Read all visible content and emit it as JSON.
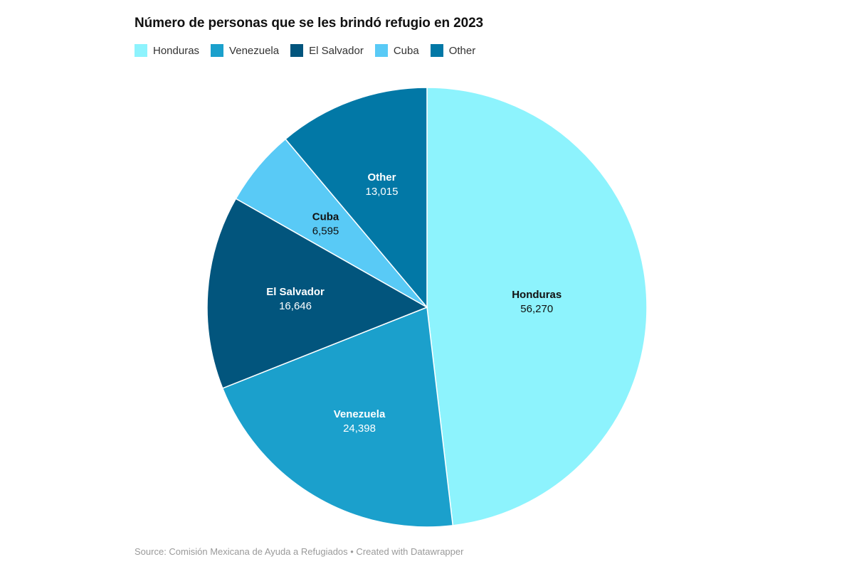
{
  "chart_data": {
    "type": "pie",
    "title": "Número de personas que se les brindó refugio en 2023",
    "categories": [
      "Honduras",
      "Venezuela",
      "El Salvador",
      "Cuba",
      "Other"
    ],
    "values": [
      56270,
      24398,
      16646,
      6595,
      13015
    ],
    "value_labels": [
      "56,270",
      "24,398",
      "16,646",
      "6,595",
      "13,015"
    ],
    "colors": [
      "#8df3fd",
      "#1ba0cc",
      "#02557d",
      "#59caf6",
      "#0278a6"
    ],
    "label_colors": [
      "#111111",
      "#ffffff",
      "#ffffff",
      "#111111",
      "#ffffff"
    ],
    "legend_placement": "top-left",
    "start_angle_deg": 0,
    "direction": "clockwise"
  },
  "footer": {
    "source": "Source: Comisión Mexicana de Ayuda a Refugiados • Created with Datawrapper"
  }
}
